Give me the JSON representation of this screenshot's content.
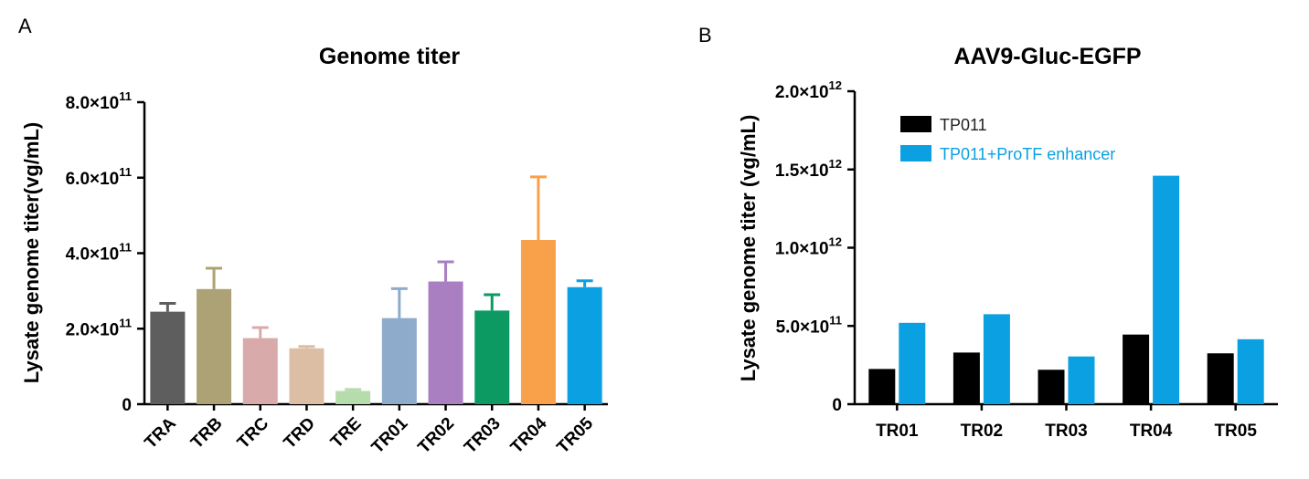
{
  "panels": [
    "A",
    "B"
  ],
  "chart_data": [
    {
      "type": "bar",
      "title": "Genome titer",
      "xlabel": "",
      "ylabel": "Lysate genome titer(vg/mL)",
      "ylim": [
        0,
        800000000000.0
      ],
      "yticks": [
        0,
        200000000000.0,
        400000000000.0,
        600000000000.0,
        800000000000.0
      ],
      "ytick_labels": [
        {
          "mant": "0",
          "exp": ""
        },
        {
          "mant": "2.0×10",
          "exp": "11"
        },
        {
          "mant": "4.0×10",
          "exp": "11"
        },
        {
          "mant": "6.0×10",
          "exp": "11"
        },
        {
          "mant": "8.0×10",
          "exp": "11"
        }
      ],
      "categories": [
        "TRA",
        "TRB",
        "TRC",
        "TRD",
        "TRE",
        "TR01",
        "TR02",
        "TR03",
        "TR04",
        "TR05"
      ],
      "values": [
        245000000000.0,
        305000000000.0,
        175000000000.0,
        148000000000.0,
        35000000000.0,
        228000000000.0,
        325000000000.0,
        248000000000.0,
        435000000000.0,
        310000000000.0
      ],
      "errors": [
        22000000000.0,
        55000000000.0,
        28000000000.0,
        5000000000.0,
        4000000000.0,
        78000000000.0,
        52000000000.0,
        42000000000.0,
        167000000000.0,
        17000000000.0
      ],
      "colors": [
        "#5e5e5e",
        "#aca275",
        "#d8aaa9",
        "#dcbea5",
        "#b6dcad",
        "#8eabcb",
        "#a97fc1",
        "#0c9a62",
        "#f9a04b",
        "#0aa0e2"
      ],
      "grid": false,
      "legend": null
    },
    {
      "type": "bar",
      "title": "AAV9-Gluc-EGFP",
      "xlabel": "",
      "ylabel": "Lysate genome titer (vg/mL)",
      "ylim": [
        0,
        2000000000000.0
      ],
      "yticks": [
        0,
        500000000000.0,
        1000000000000.0,
        1500000000000.0,
        2000000000000.0
      ],
      "ytick_labels": [
        {
          "mant": "0",
          "exp": ""
        },
        {
          "mant": "5.0×10",
          "exp": "11"
        },
        {
          "mant": "1.0×10",
          "exp": "12"
        },
        {
          "mant": "1.5×10",
          "exp": "12"
        },
        {
          "mant": "2.0×10",
          "exp": "12"
        }
      ],
      "categories": [
        "TR01",
        "TR02",
        "TR03",
        "TR04",
        "TR05"
      ],
      "series": [
        {
          "name": "TP011",
          "color": "#000000",
          "values": [
            225000000000.0,
            330000000000.0,
            220000000000.0,
            445000000000.0,
            325000000000.0
          ]
        },
        {
          "name": "TP011+ProTF enhancer",
          "color": "#0aa0e2",
          "values": [
            520000000000.0,
            575000000000.0,
            305000000000.0,
            1460000000000.0,
            415000000000.0
          ]
        }
      ],
      "grid": false,
      "legend": "top-left"
    }
  ]
}
